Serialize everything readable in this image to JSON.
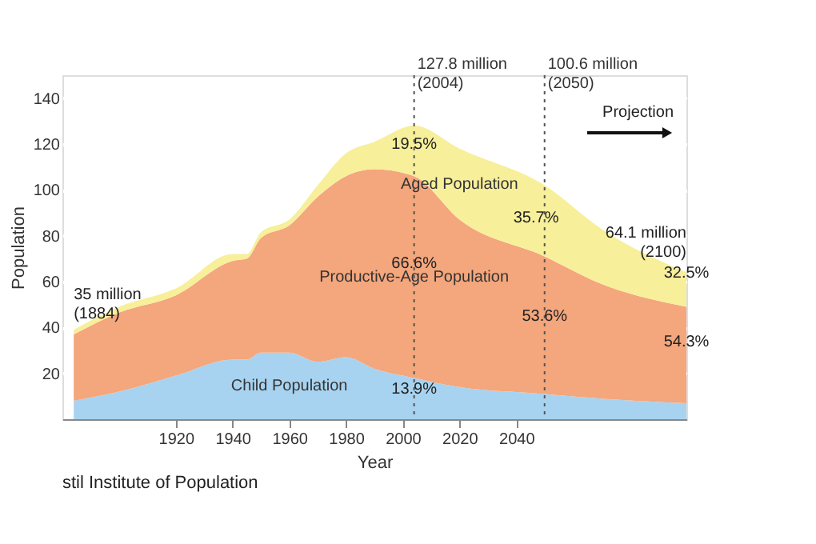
{
  "chart_data": {
    "type": "area",
    "stacked": true,
    "xlabel": "Year",
    "ylabel": "Population",
    "x": [
      1884,
      1900,
      1920,
      1940,
      1945,
      1950,
      1960,
      1970,
      1980,
      1990,
      2004,
      2020,
      2050,
      2070,
      2100
    ],
    "series": [
      {
        "name": "Child Population",
        "color": "#a8d3f0",
        "values": [
          8,
          12,
          19,
          26,
          26,
          29,
          29,
          25,
          27,
          22,
          18,
          14,
          11,
          9,
          7
        ]
      },
      {
        "name": "Productive-Age Population",
        "color": "#f4a67c",
        "values": [
          29,
          34.5,
          35,
          43,
          44,
          50,
          55.5,
          72,
          79,
          87,
          88,
          73,
          60,
          50,
          42
        ]
      },
      {
        "name": "Aged Population",
        "color": "#f7ef9a",
        "values": [
          2,
          2.5,
          3,
          3,
          2,
          2.5,
          2.5,
          5,
          10,
          12,
          22,
          31,
          31,
          24,
          15
        ]
      }
    ],
    "xlim": [
      1880,
      2100
    ],
    "xticks": [
      1920,
      1940,
      1960,
      1980,
      2000,
      2020,
      2040
    ],
    "ylim": [
      0,
      150
    ],
    "yticks": [
      20,
      40,
      60,
      80,
      100,
      120,
      140
    ],
    "grid": "y",
    "ref_lines": [
      {
        "axis": "x",
        "value": 2004,
        "label": "127.8 million\n(2004)",
        "line_style": "dotted"
      },
      {
        "axis": "x",
        "value": 2050,
        "label": "100.6 million\n(2050)",
        "line_style": "dotted"
      }
    ],
    "annotations": [
      {
        "text": "35 million\n(1884)",
        "x": 1884,
        "y": 37
      },
      {
        "text": "64.1 million\n(2100)",
        "x": 2100,
        "y": 64
      },
      "Projection",
      {
        "text": "19.5%",
        "x": 2004,
        "y": 115
      },
      {
        "text": "66.6%",
        "x": 2004,
        "y": 63
      },
      {
        "text": "13.9%",
        "x": 2004,
        "y": 8.5
      },
      {
        "text": "35.7%",
        "x": 2047,
        "y": 83
      },
      {
        "text": "53.6%",
        "x": 2050,
        "y": 40
      },
      {
        "text": "32.5%",
        "x": 2100,
        "y": 59
      },
      {
        "text": "54.3%",
        "x": 2100,
        "y": 29
      },
      "stil Institute of Population"
    ]
  }
}
